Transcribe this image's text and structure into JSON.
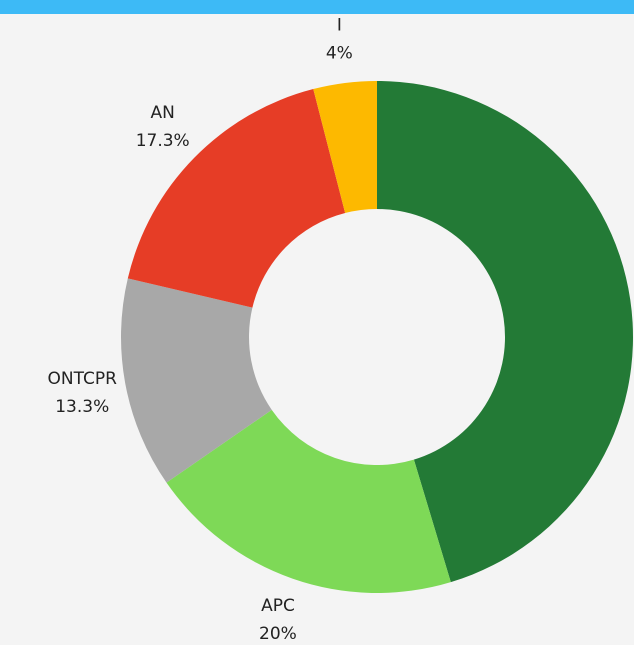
{
  "chart_data": {
    "type": "donut",
    "categories": [
      null,
      "APC",
      "ONTCPR",
      "AN",
      "I"
    ],
    "values": [
      45.3,
      20,
      13.3,
      17.3,
      4
    ],
    "value_labels": [
      null,
      "20%",
      "13.3%",
      "17.3%",
      "4%"
    ],
    "colors": [
      "#237a36",
      "#7ed957",
      "#a8a8a8",
      "#e63d26",
      "#fdb900"
    ]
  }
}
